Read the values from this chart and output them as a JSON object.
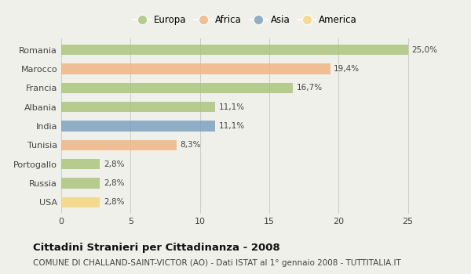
{
  "countries": [
    "Romania",
    "Marocco",
    "Francia",
    "Albania",
    "India",
    "Tunisia",
    "Portogallo",
    "Russia",
    "USA"
  ],
  "values": [
    25.0,
    19.4,
    16.7,
    11.1,
    11.1,
    8.3,
    2.8,
    2.8,
    2.8
  ],
  "labels": [
    "25,0%",
    "19,4%",
    "16,7%",
    "11,1%",
    "11,1%",
    "8,3%",
    "2,8%",
    "2,8%",
    "2,8%"
  ],
  "colors": [
    "#a8c47a",
    "#f0b482",
    "#a8c47a",
    "#a8c47a",
    "#7a9ec0",
    "#f0b482",
    "#a8c47a",
    "#a8c47a",
    "#f5d47a"
  ],
  "continents": [
    "Europa",
    "Africa",
    "Europa",
    "Europa",
    "Asia",
    "Africa",
    "Europa",
    "Europa",
    "America"
  ],
  "legend_labels": [
    "Europa",
    "Africa",
    "Asia",
    "America"
  ],
  "legend_colors": [
    "#a8c47a",
    "#f0b482",
    "#7a9ec0",
    "#f5d47a"
  ],
  "title": "Cittadini Stranieri per Cittadinanza - 2008",
  "subtitle": "COMUNE DI CHALLAND-SAINT-VICTOR (AO) - Dati ISTAT al 1° gennaio 2008 - TUTTITALIA.IT",
  "xlim": [
    0,
    26.5
  ],
  "xticks": [
    0,
    5,
    10,
    15,
    20,
    25
  ],
  "bar_height": 0.55,
  "background_color": "#f0f0ea",
  "plot_bg_color": "#f0f0ea",
  "grid_color": "#cccccc",
  "title_fontsize": 9.5,
  "subtitle_fontsize": 7.5,
  "tick_label_fontsize": 8,
  "value_label_fontsize": 7.5,
  "legend_fontsize": 8.5
}
